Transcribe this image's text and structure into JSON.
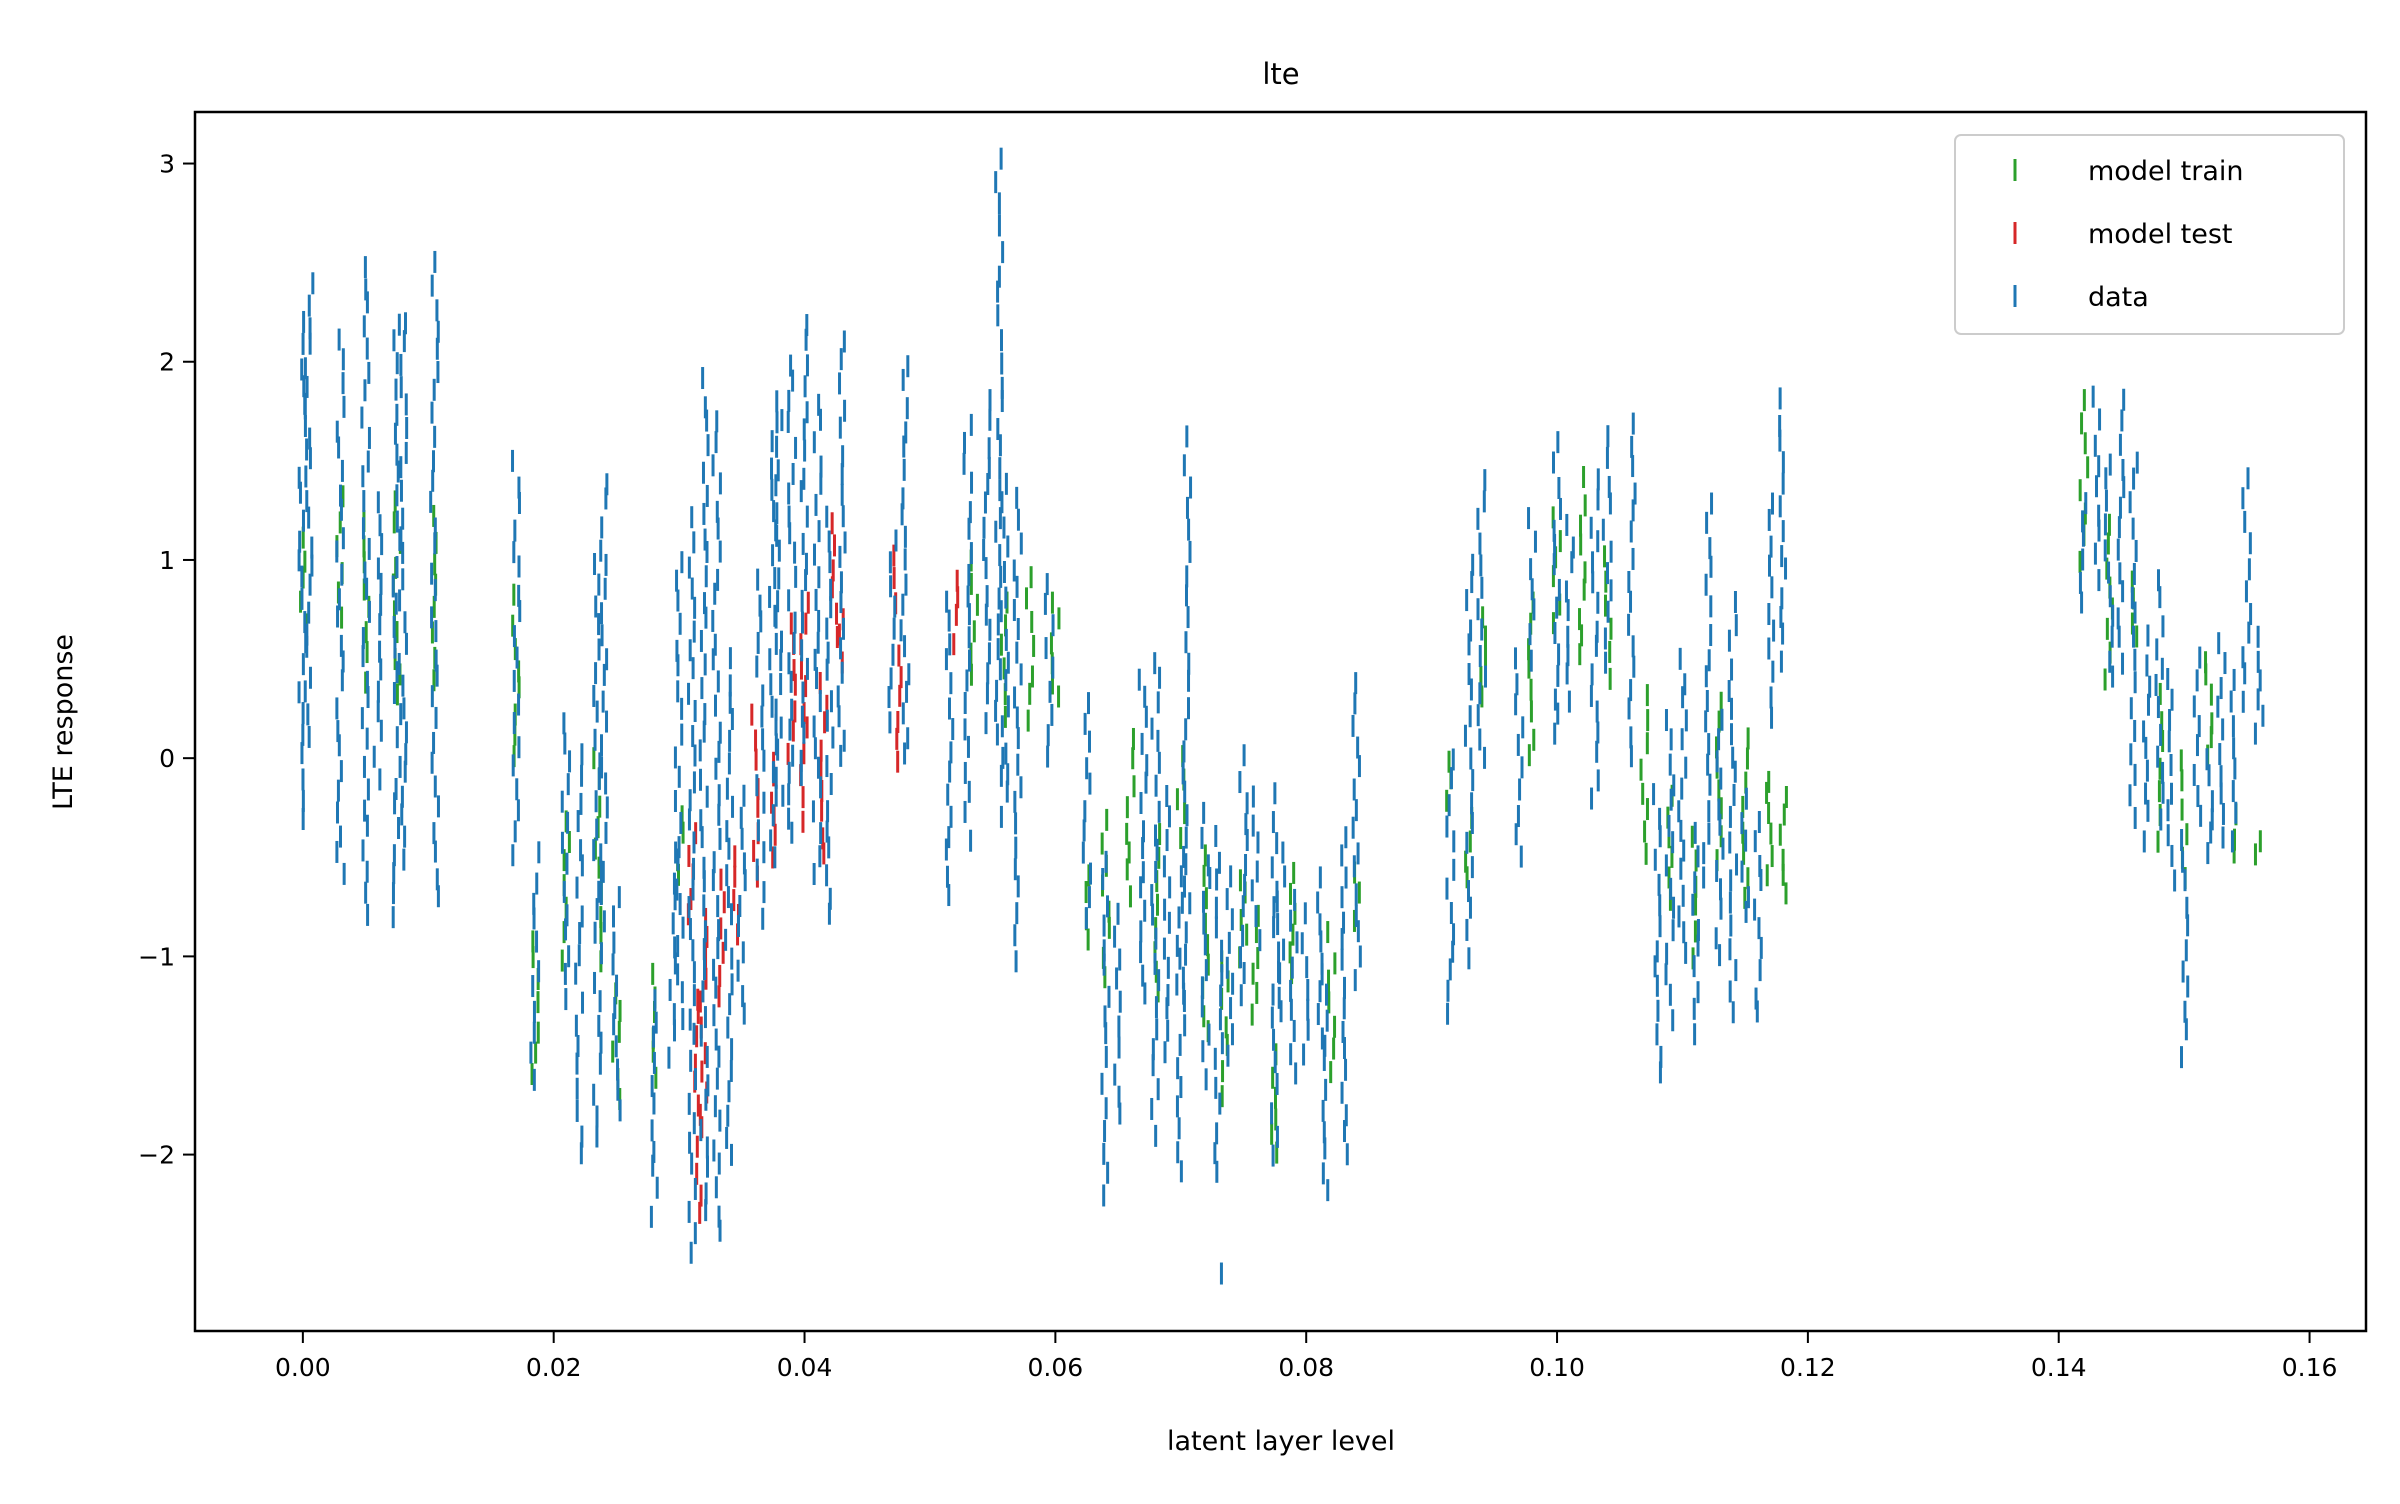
{
  "chart_data": {
    "type": "scatter",
    "title": "lte",
    "xlabel": "latent layer level",
    "ylabel": "LTE response",
    "xlim": [
      -0.0086,
      0.1645
    ],
    "ylim": [
      -2.89,
      3.26
    ],
    "xticks": [
      0.0,
      0.02,
      0.04,
      0.06,
      0.08,
      0.1,
      0.12,
      0.14,
      0.16
    ],
    "xtick_labels": [
      "0.00",
      "0.02",
      "0.04",
      "0.06",
      "0.08",
      "0.10",
      "0.12",
      "0.14",
      "0.16"
    ],
    "yticks": [
      -2,
      -1,
      0,
      1,
      2,
      3
    ],
    "ytick_labels": [
      "−2",
      "−1",
      "0",
      "1",
      "2",
      "3"
    ],
    "grid": false,
    "legend_position": "top-right",
    "marker": "vertical-line",
    "note": "vertical runs of '|' markers, each given as [x, y_min, y_max]",
    "series": [
      {
        "name": "model train",
        "color": "#2ca02c",
        "runs": [
          [
            0.0,
            0.7,
            1.1
          ],
          [
            0.003,
            0.7,
            1.3
          ],
          [
            0.005,
            0.4,
            1.2
          ],
          [
            0.0075,
            0.3,
            1.3
          ],
          [
            0.0105,
            0.4,
            1.2
          ],
          [
            0.017,
            0.0,
            0.8
          ],
          [
            0.0185,
            -1.6,
            -0.9
          ],
          [
            0.021,
            -1.0,
            -0.3
          ],
          [
            0.0235,
            -1.0,
            0.0
          ],
          [
            0.025,
            -1.7,
            -1.2
          ],
          [
            0.028,
            -1.6,
            -1.1
          ],
          [
            0.03,
            -0.6,
            -0.3
          ],
          [
            0.0535,
            0.4,
            1.0
          ],
          [
            0.056,
            0.2,
            0.8
          ],
          [
            0.058,
            0.2,
            0.9
          ],
          [
            0.06,
            0.3,
            0.8
          ],
          [
            0.0625,
            -0.9,
            -0.6
          ],
          [
            0.064,
            -1.1,
            -0.3
          ],
          [
            0.066,
            -0.7,
            0.1
          ],
          [
            0.068,
            -1.2,
            -0.4
          ],
          [
            0.07,
            -0.4,
            0.0
          ],
          [
            0.072,
            -1.4,
            -0.5
          ],
          [
            0.0735,
            -1.7,
            -1.0
          ],
          [
            0.075,
            -1.0,
            -0.6
          ],
          [
            0.076,
            -1.3,
            -0.8
          ],
          [
            0.0775,
            -2.0,
            -1.5
          ],
          [
            0.079,
            -1.1,
            -0.6
          ],
          [
            0.082,
            -1.6,
            -0.9
          ],
          [
            0.084,
            -0.8,
            -0.6
          ],
          [
            0.0915,
            -0.2,
            0.0
          ],
          [
            0.093,
            -0.6,
            -0.3
          ],
          [
            0.094,
            0.3,
            0.7
          ],
          [
            0.098,
            0.0,
            0.8
          ],
          [
            0.1,
            0.7,
            1.2
          ],
          [
            0.102,
            0.5,
            1.4
          ],
          [
            0.104,
            0.4,
            1.0
          ],
          [
            0.107,
            -0.5,
            0.3
          ],
          [
            0.109,
            -0.7,
            -0.2
          ],
          [
            0.111,
            -1.0,
            -0.4
          ],
          [
            0.113,
            -0.5,
            0.3
          ],
          [
            0.115,
            -0.7,
            0.1
          ],
          [
            0.117,
            -0.6,
            -0.1
          ],
          [
            0.118,
            -0.7,
            -0.2
          ],
          [
            0.142,
            1.0,
            1.8
          ],
          [
            0.144,
            0.4,
            1.2
          ],
          [
            0.146,
            0.6,
            0.9
          ],
          [
            0.148,
            -0.4,
            0.3
          ],
          [
            0.15,
            -0.6,
            0.0
          ],
          [
            0.152,
            0.0,
            0.5
          ],
          [
            0.154,
            -0.5,
            -0.3
          ],
          [
            0.156,
            -0.5,
            -0.4
          ]
        ]
      },
      {
        "name": "model test",
        "color": "#d62728",
        "runs": [
          [
            0.031,
            -0.8,
            -0.4
          ],
          [
            0.0315,
            -2.3,
            -1.2
          ],
          [
            0.032,
            -1.8,
            -0.8
          ],
          [
            0.0335,
            -1.2,
            -0.6
          ],
          [
            0.0345,
            -0.9,
            -0.5
          ],
          [
            0.036,
            -0.6,
            0.2
          ],
          [
            0.0375,
            -0.5,
            0.0
          ],
          [
            0.039,
            0.0,
            0.7
          ],
          [
            0.04,
            -0.3,
            0.8
          ],
          [
            0.0415,
            -0.5,
            0.4
          ],
          [
            0.0425,
            0.6,
            1.2
          ],
          [
            0.043,
            0.5,
            0.7
          ],
          [
            0.047,
            0.8,
            1.0
          ],
          [
            0.0475,
            0.0,
            0.5
          ],
          [
            0.052,
            0.6,
            0.9
          ]
        ]
      },
      {
        "name": "data",
        "color": "#1f77b4",
        "runs": [
          [
            0.0,
            -0.3,
            2.2
          ],
          [
            0.0005,
            0.1,
            2.4
          ],
          [
            0.003,
            -0.6,
            2.1
          ],
          [
            0.005,
            -0.8,
            2.5
          ],
          [
            0.006,
            -0.1,
            1.3
          ],
          [
            0.0075,
            -0.8,
            2.2
          ],
          [
            0.008,
            -0.5,
            2.2
          ],
          [
            0.0105,
            -0.7,
            2.5
          ],
          [
            0.017,
            -0.5,
            1.5
          ],
          [
            0.0185,
            -1.6,
            -0.5
          ],
          [
            0.021,
            -1.2,
            0.2
          ],
          [
            0.022,
            -2.0,
            0.0
          ],
          [
            0.0235,
            -1.9,
            1.0
          ],
          [
            0.024,
            -0.8,
            1.4
          ],
          [
            0.025,
            -1.8,
            -0.7
          ],
          [
            0.028,
            -2.3,
            -1.2
          ],
          [
            0.0295,
            -1.5,
            -0.5
          ],
          [
            0.03,
            -1.3,
            1.0
          ],
          [
            0.031,
            -2.5,
            1.2
          ],
          [
            0.032,
            -2.3,
            1.9
          ],
          [
            0.033,
            -2.4,
            1.7
          ],
          [
            0.034,
            -2.0,
            0.5
          ],
          [
            0.035,
            -1.3,
            -0.2
          ],
          [
            0.0365,
            -0.8,
            0.9
          ],
          [
            0.0375,
            -0.5,
            1.8
          ],
          [
            0.038,
            -0.2,
            1.7
          ],
          [
            0.039,
            -0.4,
            2.0
          ],
          [
            0.04,
            -0.1,
            2.2
          ],
          [
            0.041,
            -0.6,
            1.8
          ],
          [
            0.042,
            -0.8,
            1.2
          ],
          [
            0.043,
            0.0,
            2.1
          ],
          [
            0.047,
            0.2,
            1.1
          ],
          [
            0.048,
            0.0,
            2.0
          ],
          [
            0.0515,
            -0.7,
            0.8
          ],
          [
            0.053,
            -0.4,
            1.7
          ],
          [
            0.0545,
            0.2,
            1.8
          ],
          [
            0.0555,
            -0.1,
            3.0
          ],
          [
            0.056,
            -0.3,
            1.4
          ],
          [
            0.057,
            -1.0,
            1.3
          ],
          [
            0.0595,
            0.0,
            0.9
          ],
          [
            0.0625,
            -0.8,
            0.3
          ],
          [
            0.064,
            -2.2,
            -0.5
          ],
          [
            0.065,
            -1.8,
            -0.8
          ],
          [
            0.067,
            -1.2,
            0.4
          ],
          [
            0.068,
            -1.9,
            0.5
          ],
          [
            0.069,
            -1.5,
            -0.2
          ],
          [
            0.07,
            -2.1,
            -0.5
          ],
          [
            0.0705,
            -1.2,
            1.6
          ],
          [
            0.072,
            -1.6,
            -0.3
          ],
          [
            0.073,
            -2.1,
            -0.4
          ],
          [
            0.0735,
            -2.6,
            -2.6
          ],
          [
            0.074,
            -1.5,
            -0.6
          ],
          [
            0.075,
            -1.2,
            0.0
          ],
          [
            0.076,
            -0.9,
            -0.2
          ],
          [
            0.0775,
            -2.0,
            -0.2
          ],
          [
            0.078,
            -1.3,
            -0.5
          ],
          [
            0.079,
            -1.6,
            -0.7
          ],
          [
            0.08,
            -1.5,
            -0.8
          ],
          [
            0.081,
            -1.4,
            -0.6
          ],
          [
            0.0815,
            -2.2,
            -1.1
          ],
          [
            0.083,
            -2.0,
            -0.4
          ],
          [
            0.084,
            -1.1,
            0.4
          ],
          [
            0.0915,
            -1.3,
            0.0
          ],
          [
            0.093,
            -1.0,
            1.0
          ],
          [
            0.094,
            0.0,
            1.4
          ],
          [
            0.097,
            -0.5,
            0.5
          ],
          [
            0.098,
            0.5,
            1.2
          ],
          [
            0.1,
            0.1,
            1.6
          ],
          [
            0.101,
            0.3,
            1.2
          ],
          [
            0.103,
            -0.2,
            1.4
          ],
          [
            0.104,
            0.5,
            1.6
          ],
          [
            0.106,
            0.0,
            1.7
          ],
          [
            0.108,
            -1.6,
            -0.2
          ],
          [
            0.109,
            -1.3,
            0.2
          ],
          [
            0.11,
            -1.0,
            0.5
          ],
          [
            0.111,
            -1.4,
            -0.4
          ],
          [
            0.112,
            -0.6,
            1.3
          ],
          [
            0.113,
            -1.0,
            0.2
          ],
          [
            0.114,
            -1.3,
            0.8
          ],
          [
            0.115,
            -0.8,
            -0.2
          ],
          [
            0.116,
            -1.3,
            -0.3
          ],
          [
            0.117,
            0.2,
            1.3
          ],
          [
            0.118,
            0.5,
            1.8
          ],
          [
            0.142,
            0.8,
            1.3
          ],
          [
            0.143,
            0.9,
            1.8
          ],
          [
            0.144,
            0.4,
            1.5
          ],
          [
            0.145,
            0.5,
            1.8
          ],
          [
            0.146,
            -0.3,
            1.5
          ],
          [
            0.147,
            -0.4,
            0.6
          ],
          [
            0.148,
            -0.3,
            0.9
          ],
          [
            0.149,
            -0.6,
            0.4
          ],
          [
            0.15,
            -1.5,
            -0.4
          ],
          [
            0.151,
            -0.3,
            0.5
          ],
          [
            0.152,
            -0.5,
            0.0
          ],
          [
            0.153,
            -0.4,
            0.6
          ],
          [
            0.154,
            -0.4,
            0.4
          ],
          [
            0.155,
            0.3,
            1.4
          ],
          [
            0.156,
            0.1,
            0.6
          ]
        ]
      }
    ]
  }
}
